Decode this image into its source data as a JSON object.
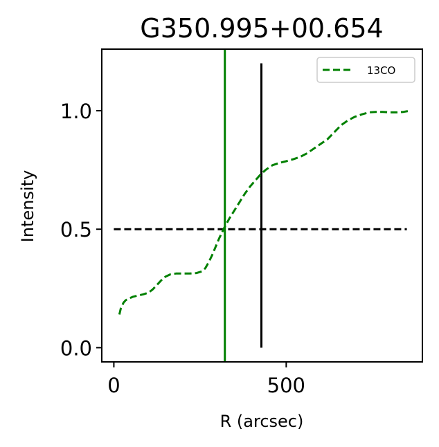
{
  "chart_data": {
    "type": "line",
    "title": "G350.995+00.654",
    "xlabel": "R (arcsec)",
    "ylabel": "Intensity",
    "xlim": [
      -35,
      895
    ],
    "ylim": [
      -0.06,
      1.26
    ],
    "xticks": [
      0,
      500
    ],
    "xtick_labels": [
      "0",
      "500"
    ],
    "yticks": [
      0.0,
      0.5,
      1.0
    ],
    "ytick_labels": [
      "0.0",
      "0.5",
      "1.0"
    ],
    "grid": false,
    "legend": {
      "position": "top-right",
      "entries": [
        "13CO"
      ]
    },
    "colors": {
      "series": "#008000",
      "reference": "#000000",
      "vline_half": "#008000"
    },
    "series": [
      {
        "name": "13CO",
        "style": "dashed",
        "color": "#008000",
        "x": [
          16,
          20,
          28,
          34,
          40,
          48,
          56,
          70,
          85,
          100,
          112,
          125,
          138,
          150,
          165,
          180,
          200,
          220,
          240,
          255,
          265,
          275,
          285,
          295,
          305,
          320,
          335,
          350,
          365,
          380,
          395,
          410,
          425,
          440,
          460,
          480,
          500,
          520,
          540,
          560,
          580,
          600,
          620,
          640,
          660,
          680,
          700,
          720,
          740,
          760,
          780,
          800,
          820,
          840,
          860
        ],
        "y": [
          0.14,
          0.165,
          0.19,
          0.2,
          0.205,
          0.21,
          0.215,
          0.22,
          0.225,
          0.232,
          0.245,
          0.265,
          0.285,
          0.3,
          0.31,
          0.313,
          0.313,
          0.313,
          0.315,
          0.322,
          0.335,
          0.36,
          0.39,
          0.425,
          0.46,
          0.505,
          0.545,
          0.58,
          0.615,
          0.65,
          0.68,
          0.705,
          0.73,
          0.75,
          0.77,
          0.78,
          0.787,
          0.795,
          0.805,
          0.82,
          0.84,
          0.86,
          0.88,
          0.91,
          0.94,
          0.96,
          0.975,
          0.985,
          0.993,
          0.995,
          0.995,
          0.993,
          0.993,
          0.995,
          1.0
        ]
      }
    ],
    "reference_lines": [
      {
        "orientation": "horizontal",
        "y": 0.5,
        "x_range": [
          0,
          850
        ],
        "style": "dashed",
        "color": "#000000"
      },
      {
        "orientation": "vertical",
        "x": 322,
        "style": "solid",
        "color": "#008000",
        "span": "full"
      },
      {
        "orientation": "vertical",
        "x": 428,
        "y_range": [
          0.0,
          1.2
        ],
        "style": "solid",
        "color": "#000000"
      }
    ]
  }
}
